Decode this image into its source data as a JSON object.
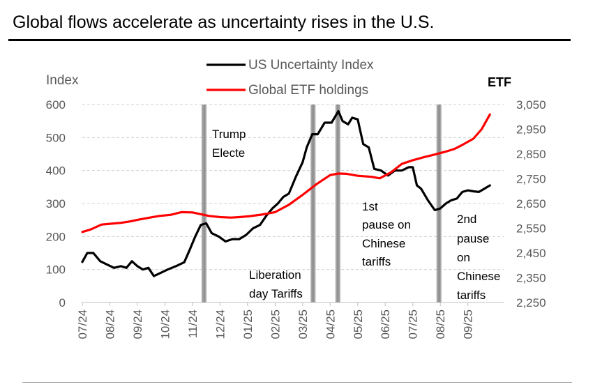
{
  "title": "Global flows accelerate as uncertainty rises in the U.S.",
  "chart_data": {
    "type": "line",
    "ylabel_left": "Index",
    "ylabel_right": "ETF",
    "ylim_left": [
      0,
      600
    ],
    "ylim_right": [
      2250,
      3050
    ],
    "yticks_left": [
      "0",
      "100",
      "200",
      "300",
      "400",
      "500",
      "600"
    ],
    "yticks_right": [
      "2,250",
      "2,350",
      "2,450",
      "2,550",
      "2,650",
      "2,750",
      "2,850",
      "2,950",
      "3,050"
    ],
    "yticks_left_values": [
      0,
      100,
      200,
      300,
      400,
      500,
      600
    ],
    "yticks_right_values": [
      2250,
      2350,
      2450,
      2550,
      2650,
      2750,
      2850,
      2950,
      3050
    ],
    "x_categories": [
      "07/24",
      "08/24",
      "09/24",
      "10/24",
      "11/24",
      "12/24",
      "01/25",
      "02/25",
      "03/25",
      "04/25",
      "05/25",
      "06/25",
      "07/25",
      "08/25",
      "09/25"
    ],
    "x_range": [
      0,
      15.3
    ],
    "legend": [
      {
        "label": "US Uncertainty Index",
        "color": "#000000"
      },
      {
        "label": "Global ETF holdings",
        "color": "#ff0000"
      }
    ],
    "event_bars": [
      {
        "x": 4.42,
        "color": "#a6a6a6"
      },
      {
        "x": 8.38,
        "color": "#a6a6a6"
      },
      {
        "x": 9.28,
        "color": "#a6a6a6"
      },
      {
        "x": 12.95,
        "color": "#a6a6a6"
      }
    ],
    "annotations": [
      {
        "lines": [
          "Trump",
          "Electe"
        ]
      },
      {
        "lines": [
          "Liberation",
          "day Tariffs"
        ]
      },
      {
        "lines": [
          "1st",
          "pause on",
          "Chinese",
          "tariffs"
        ]
      },
      {
        "lines": [
          "2nd",
          "pause",
          "on",
          "Chinese",
          "tariffs"
        ]
      }
    ],
    "series": [
      {
        "name": "US Uncertainty Index",
        "axis": "left",
        "color": "#000000",
        "x": [
          0.0,
          0.18,
          0.4,
          0.65,
          0.9,
          1.15,
          1.4,
          1.6,
          1.8,
          2.0,
          2.2,
          2.4,
          2.6,
          2.85,
          3.1,
          3.4,
          3.7,
          3.9,
          4.1,
          4.3,
          4.5,
          4.7,
          4.95,
          5.2,
          5.45,
          5.7,
          5.95,
          6.2,
          6.45,
          6.7,
          6.9,
          7.1,
          7.3,
          7.5,
          7.75,
          8.0,
          8.15,
          8.35,
          8.55,
          8.8,
          9.05,
          9.3,
          9.45,
          9.65,
          9.8,
          10.0,
          10.2,
          10.4,
          10.6,
          10.85,
          11.1,
          11.35,
          11.6,
          11.85,
          12.0,
          12.15,
          12.3,
          12.55,
          12.8,
          13.0,
          13.2,
          13.4,
          13.6,
          13.8,
          14.0,
          14.2,
          14.4,
          14.6,
          14.8
        ],
        "values": [
          123,
          150,
          150,
          125,
          115,
          105,
          110,
          105,
          125,
          110,
          100,
          105,
          80,
          90,
          100,
          110,
          122,
          160,
          200,
          235,
          240,
          210,
          200,
          185,
          192,
          192,
          205,
          225,
          235,
          265,
          285,
          300,
          320,
          330,
          380,
          425,
          470,
          510,
          510,
          545,
          545,
          580,
          550,
          540,
          560,
          555,
          480,
          470,
          405,
          400,
          385,
          400,
          400,
          410,
          410,
          355,
          345,
          310,
          280,
          285,
          300,
          310,
          315,
          335,
          340,
          337,
          335,
          345,
          355
        ]
      },
      {
        "name": "Global ETF holdings",
        "axis": "right",
        "color": "#ff0000",
        "x": [
          0.0,
          0.3,
          0.7,
          1.0,
          1.4,
          1.7,
          2.1,
          2.4,
          2.8,
          3.2,
          3.6,
          4.0,
          4.3,
          4.6,
          5.0,
          5.4,
          5.7,
          6.1,
          6.5,
          7.0,
          7.5,
          8.0,
          8.5,
          9.0,
          9.3,
          9.6,
          10.0,
          10.5,
          10.8,
          11.2,
          11.6,
          12.0,
          12.4,
          12.8,
          13.2,
          13.5,
          13.8,
          14.2,
          14.5,
          14.8
        ],
        "values": [
          2535,
          2545,
          2565,
          2568,
          2572,
          2577,
          2586,
          2592,
          2600,
          2604,
          2615,
          2614,
          2607,
          2600,
          2595,
          2593,
          2595,
          2599,
          2605,
          2615,
          2645,
          2685,
          2728,
          2765,
          2771,
          2770,
          2762,
          2758,
          2752,
          2775,
          2810,
          2825,
          2837,
          2848,
          2860,
          2870,
          2887,
          2912,
          2950,
          3010
        ]
      }
    ]
  }
}
